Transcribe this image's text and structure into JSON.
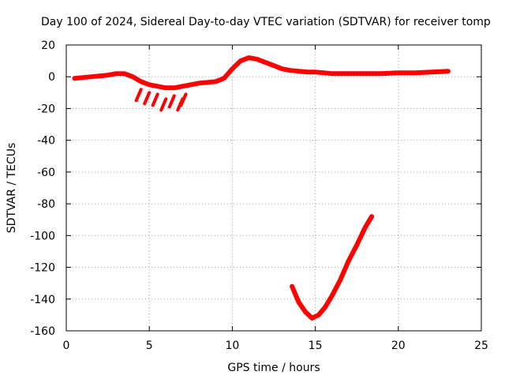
{
  "chart_data": {
    "type": "scatter",
    "title": "Day 100 of 2024, Sidereal Day-to-day VTEC variation (SDTVAR) for receiver tomp",
    "xlabel": "GPS time / hours",
    "ylabel": "SDTVAR / TECUs",
    "xlim": [
      0,
      25
    ],
    "ylim": [
      -160,
      20
    ],
    "xticks": [
      0,
      5,
      10,
      15,
      20,
      25
    ],
    "yticks": [
      20,
      0,
      -20,
      -40,
      -60,
      -80,
      -100,
      -120,
      -140,
      -160
    ],
    "grid": true,
    "series": [
      {
        "name": "SDTVAR",
        "color": "#ff0000",
        "segments": [
          [
            [
              0.5,
              -1
            ],
            [
              1,
              -0.5
            ],
            [
              1.5,
              0
            ],
            [
              2,
              0.5
            ],
            [
              2.5,
              1
            ],
            [
              3,
              2
            ],
            [
              3.5,
              2
            ],
            [
              4,
              0
            ],
            [
              4.5,
              -3
            ],
            [
              5,
              -5
            ],
            [
              5.5,
              -6
            ],
            [
              6,
              -7
            ],
            [
              6.5,
              -7
            ],
            [
              7,
              -6
            ],
            [
              7.5,
              -5
            ],
            [
              8,
              -4
            ],
            [
              8.5,
              -3.5
            ],
            [
              9,
              -3
            ],
            [
              9.5,
              -1
            ],
            [
              10,
              5
            ],
            [
              10.5,
              10
            ],
            [
              11,
              12
            ],
            [
              11.5,
              11
            ],
            [
              12,
              9
            ],
            [
              12.5,
              7
            ],
            [
              13,
              5
            ],
            [
              13.5,
              4
            ],
            [
              14,
              3.5
            ],
            [
              14.5,
              3
            ],
            [
              15,
              3
            ],
            [
              15.5,
              2.5
            ],
            [
              16,
              2
            ],
            [
              17,
              2
            ],
            [
              18,
              2
            ],
            [
              19,
              2
            ],
            [
              20,
              2.5
            ],
            [
              21,
              2.5
            ],
            [
              22,
              3
            ],
            [
              23,
              3.5
            ]
          ],
          [
            [
              13.6,
              -132
            ],
            [
              14,
              -142
            ],
            [
              14.4,
              -148
            ],
            [
              14.8,
              -152
            ],
            [
              15.2,
              -150
            ],
            [
              15.6,
              -145
            ],
            [
              16,
              -138
            ],
            [
              16.5,
              -128
            ],
            [
              17,
              -116
            ],
            [
              17.5,
              -106
            ],
            [
              18,
              -95
            ],
            [
              18.4,
              -88
            ]
          ]
        ],
        "scatter_spikes": [
          [
            4.5,
            -8
          ],
          [
            5,
            -10
          ],
          [
            5.5,
            -11
          ],
          [
            6,
            -14
          ],
          [
            6.5,
            -12
          ],
          [
            7,
            -14
          ],
          [
            7.2,
            -11
          ]
        ]
      }
    ]
  }
}
